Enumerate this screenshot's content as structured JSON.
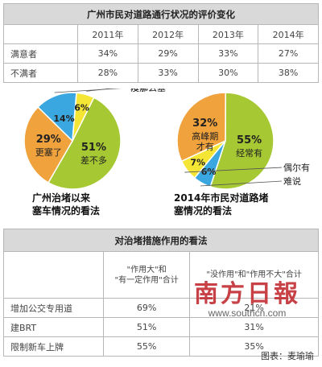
{
  "table1": {
    "title": "广州市民对道路通行状况的评价变化",
    "columns": [
      "2011年",
      "2012年",
      "2013年",
      "2014年"
    ],
    "rows": [
      {
        "label": "满意者",
        "values": [
          "34%",
          "29%",
          "33%",
          "27%"
        ]
      },
      {
        "label": "不满者",
        "values": [
          "28%",
          "33%",
          "30%",
          "38%"
        ]
      }
    ]
  },
  "chart_data": [
    {
      "type": "pie",
      "title": "广州治堵以来塞车情况的看法",
      "slices": [
        {
          "name": "差不多",
          "value": 51,
          "label": "51%",
          "color": "#a6c832"
        },
        {
          "name": "更塞了",
          "value": 29,
          "label": "29%",
          "color": "#f0a23c"
        },
        {
          "name": "没那么塞",
          "value": 14,
          "label": "14%",
          "color": "#3aa7e0"
        },
        {
          "name": "难说",
          "value": 6,
          "label": "6%",
          "color": "#f5e636"
        }
      ]
    },
    {
      "type": "pie",
      "title": "2014年市民对道路堵塞情况的看法",
      "slices": [
        {
          "name": "经常有",
          "value": 55,
          "label": "55%",
          "color": "#a6c832"
        },
        {
          "name": "高峰期才有",
          "value": 32,
          "label": "32%",
          "color": "#f0a23c"
        },
        {
          "name": "难说",
          "value": 6,
          "label": "6%",
          "color": "#3aa7e0"
        },
        {
          "name": "偶尔有",
          "value": 7,
          "label": "7%",
          "color": "#f5e636"
        }
      ]
    }
  ],
  "table2": {
    "title": "对治堵措施作用的看法",
    "col1_header_line1": "\"作用大\"和",
    "col1_header_line2": "\"有一定作用\"合计",
    "col2_header": "\"没作用\"和\"作用不大\"合计",
    "rows": [
      {
        "label": "增加公交专用道",
        "values": [
          "69%",
          "21%"
        ]
      },
      {
        "label": "建BRT",
        "values": [
          "51%",
          "31%"
        ]
      },
      {
        "label": "限制新车上牌",
        "values": [
          "55%",
          "35%"
        ]
      }
    ]
  },
  "watermark": {
    "logo": "南方日報",
    "url": "www.southcn.com"
  },
  "credit": "图表：麦瑜瑜"
}
